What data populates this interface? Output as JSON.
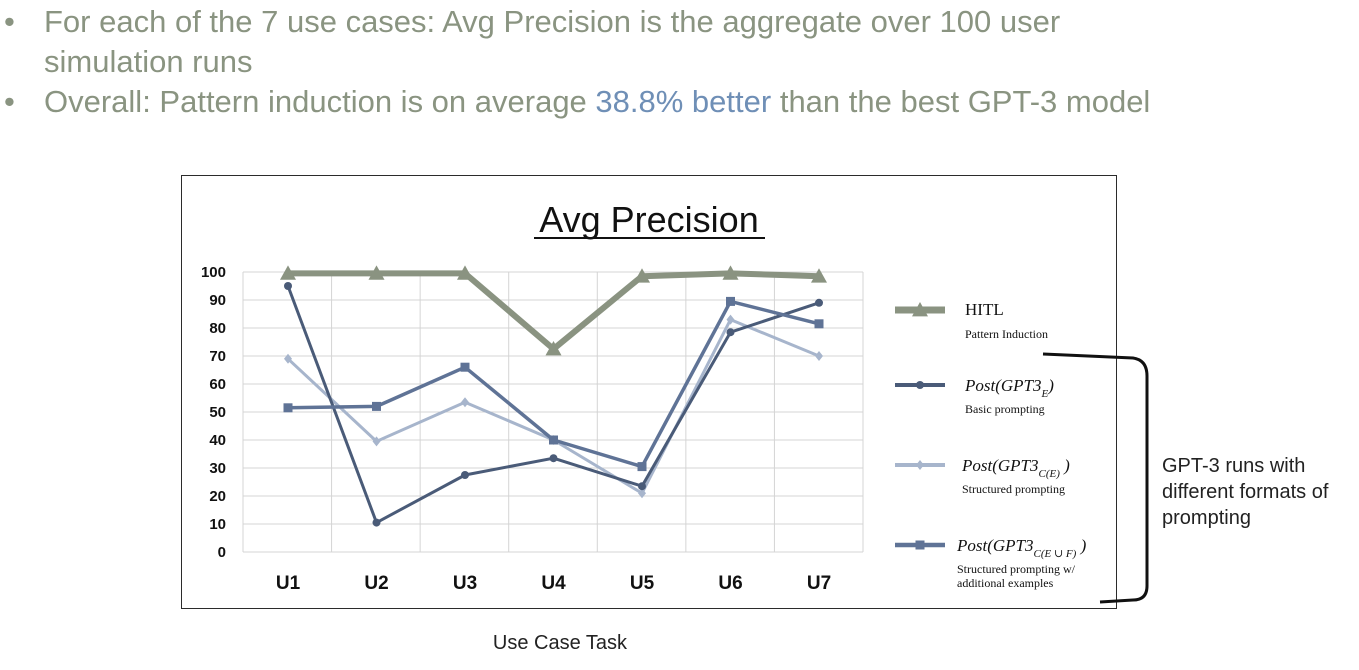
{
  "bullets": {
    "item1_line1": "For each of the 7 use cases: Avg Precision is the aggregate over 100 user",
    "item1_line2": "simulation runs",
    "item2_prefix": "Overall: Pattern induction is on average ",
    "item2_highlight": "38.8% better",
    "item2_suffix": " than the best GPT-3 model",
    "bullet_glyph": "•"
  },
  "colors": {
    "bullet_text": "#8a9481",
    "highlight": "#6f8fb6",
    "hitl": "#8a9381",
    "gpt3_e": "#4a5b78",
    "gpt3_ce": "#a7b5cc",
    "gpt3_cef": "#5f7396"
  },
  "chart_data": {
    "type": "line",
    "title": "Avg Precision",
    "xlabel": "Use Case Task",
    "ylabel": "",
    "categories": [
      "U1",
      "U2",
      "U3",
      "U4",
      "U5",
      "U6",
      "U7"
    ],
    "yticks": [
      "0",
      "10",
      "20",
      "30",
      "40",
      "50",
      "60",
      "70",
      "80",
      "90",
      "100"
    ],
    "ylim": [
      0,
      100
    ],
    "grid": true,
    "legend_position": "right",
    "series": [
      {
        "name": "HITL",
        "sublabel": "Pattern Induction",
        "marker": "triangle",
        "color": "#8a9381",
        "values": [
          99.5,
          99.5,
          99.5,
          72.5,
          98.5,
          99.5,
          98.5
        ]
      },
      {
        "name": "Post(GPT3",
        "sub": "E",
        "tail": ")",
        "sublabel": "Basic prompting",
        "marker": "circle",
        "color": "#4a5b78",
        "values": [
          95,
          10.5,
          27.5,
          33.5,
          23.5,
          78.5,
          89
        ]
      },
      {
        "name": "Post(GPT3",
        "sub": "C(E)",
        "tail": " )",
        "sublabel": "Structured prompting",
        "marker": "diamond",
        "color": "#a7b5cc",
        "values": [
          69,
          39.5,
          53.5,
          40,
          21,
          83,
          70
        ]
      },
      {
        "name": "Post(GPT3",
        "sub": "C(E ∪ F)",
        "tail": " )",
        "sublabel": "Structured prompting w/",
        "sublabel2": "additional examples",
        "marker": "square",
        "color": "#5f7396",
        "values": [
          51.5,
          52,
          66,
          40,
          30.5,
          89.5,
          81.5
        ]
      }
    ]
  },
  "annotation": {
    "line1": "GPT-3 runs with",
    "line2": "different formats of",
    "line3": "prompting"
  }
}
